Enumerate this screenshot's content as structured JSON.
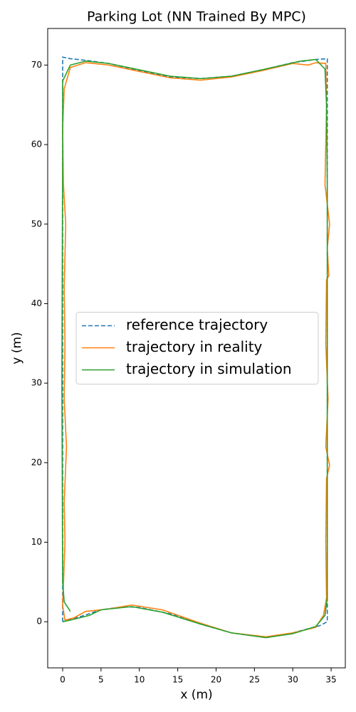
{
  "chart_data": {
    "type": "line",
    "title": "Parking Lot (NN Trained By MPC)",
    "x_label": "x (m)",
    "y_label": "y (m)",
    "xlim": [
      -1.95,
      36.85
    ],
    "ylim": [
      -5.8,
      74.6
    ],
    "xticks": [
      0,
      5,
      10,
      15,
      20,
      25,
      30,
      35
    ],
    "yticks": [
      0,
      10,
      20,
      30,
      40,
      50,
      60,
      70
    ],
    "legend": "center left",
    "series": [
      {
        "name": "reference trajectory",
        "color": "#1f77b4",
        "linestyle": "dashed",
        "x": [
          0,
          0,
          1,
          3,
          6,
          10,
          14,
          18,
          22,
          26,
          30,
          33,
          34.5,
          34.5,
          33.5,
          30,
          26.5,
          22,
          18,
          14,
          10,
          8,
          5,
          2.5,
          0
        ],
        "values": [
          0,
          71,
          70.8,
          70.6,
          70.2,
          69.3,
          68.5,
          68.3,
          68.6,
          69.4,
          70.3,
          70.7,
          70.8,
          0,
          -0.5,
          -1.4,
          -2,
          -1.4,
          -0.3,
          1,
          1.8,
          1.9,
          1.5,
          0.7,
          0
        ]
      },
      {
        "name": "trajectory in reality",
        "color": "#ff7f0e",
        "linestyle": "solid",
        "x": [
          0.3,
          0,
          0.3,
          0.2,
          0.5,
          0.2,
          0.3,
          0.2,
          0.4,
          0.1,
          0,
          0.2,
          1,
          3,
          6,
          10,
          14,
          18,
          22,
          26,
          30,
          32,
          33,
          34.3,
          34.4,
          34.2,
          34.8,
          34.5,
          34.7,
          34.4,
          34.3,
          34.6,
          34.3,
          34.8,
          34.4,
          34.3,
          34.4,
          34,
          33,
          30,
          26.5,
          22,
          18,
          13,
          9,
          6,
          3,
          1.5,
          0.3
        ],
        "values": [
          0.2,
          2,
          10,
          15,
          22,
          28,
          35,
          42,
          50,
          55,
          62,
          67,
          69.7,
          70.3,
          70,
          69.2,
          68.4,
          68.1,
          68.5,
          69.3,
          70.2,
          70,
          70.3,
          70.2,
          65,
          55,
          50,
          47,
          43.5,
          43,
          35,
          28,
          22,
          19.7,
          18,
          10,
          3,
          0.8,
          -0.7,
          -1.4,
          -1.9,
          -1.4,
          -0.2,
          1.5,
          2.1,
          1.6,
          1.3,
          0.5,
          0.2
        ]
      },
      {
        "name": "trajectory in simulation",
        "color": "#2ca02c",
        "linestyle": "solid",
        "x": [
          0,
          1,
          3.5,
          5,
          9,
          13,
          18,
          22,
          26.5,
          30,
          33,
          34.2,
          34.5,
          34.5,
          34.5,
          34.5,
          34.4,
          34.2,
          33,
          31,
          26,
          22,
          18,
          14,
          10,
          6,
          3,
          1,
          0,
          0,
          -0.1,
          0,
          0.2,
          1
        ],
        "values": [
          0,
          0.2,
          0.8,
          1.5,
          1.9,
          1.2,
          -0.3,
          -1.4,
          -2,
          -1.5,
          -0.6,
          0.8,
          3,
          20,
          40,
          55,
          65,
          69.5,
          70.7,
          70.5,
          69.4,
          68.6,
          68.3,
          68.6,
          69.4,
          70.2,
          70.5,
          70,
          68,
          60,
          30,
          5,
          2.5,
          1.3
        ]
      }
    ]
  }
}
